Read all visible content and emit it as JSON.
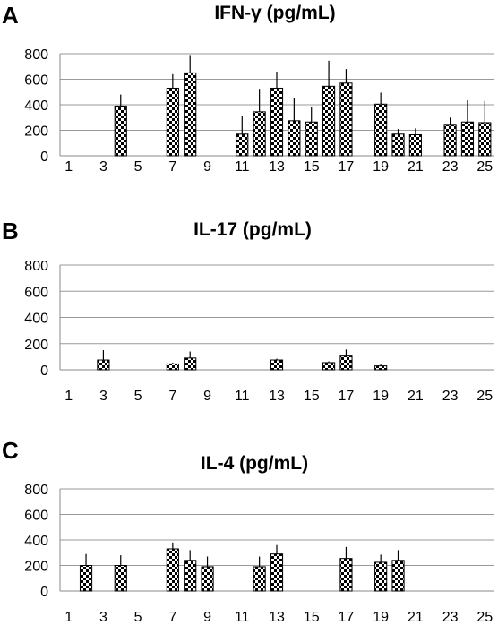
{
  "chart_data": [
    {
      "type": "bar",
      "panel_label": "A",
      "title": "IFN-γ (pg/mL)",
      "x": [
        1,
        2,
        3,
        4,
        5,
        6,
        7,
        8,
        9,
        10,
        11,
        12,
        13,
        14,
        15,
        16,
        17,
        18,
        19,
        20,
        21,
        22,
        23,
        24,
        25
      ],
      "x_tick_labels": [
        "1",
        "3",
        "5",
        "7",
        "9",
        "11",
        "13",
        "15",
        "17",
        "19",
        "21",
        "23",
        "25"
      ],
      "values": [
        null,
        null,
        null,
        390,
        null,
        null,
        530,
        650,
        null,
        null,
        170,
        345,
        530,
        275,
        265,
        545,
        570,
        null,
        405,
        170,
        165,
        null,
        240,
        265,
        260
      ],
      "error_plus": [
        null,
        null,
        null,
        90,
        null,
        null,
        110,
        140,
        null,
        null,
        140,
        180,
        130,
        180,
        120,
        200,
        110,
        null,
        90,
        40,
        50,
        null,
        60,
        170,
        170
      ],
      "ylim": [
        0,
        800
      ],
      "y_ticks": [
        0,
        200,
        400,
        600,
        800
      ],
      "fill": "checkerboard",
      "grid": true
    },
    {
      "type": "bar",
      "panel_label": "B",
      "title": "IL-17 (pg/mL)",
      "x": [
        1,
        2,
        3,
        4,
        5,
        6,
        7,
        8,
        9,
        10,
        11,
        12,
        13,
        14,
        15,
        16,
        17,
        18,
        19,
        20,
        21,
        22,
        23,
        24,
        25
      ],
      "x_tick_labels": [
        "1",
        "3",
        "5",
        "7",
        "9",
        "11",
        "13",
        "15",
        "17",
        "19",
        "21",
        "23",
        "25"
      ],
      "values": [
        null,
        null,
        75,
        null,
        null,
        null,
        45,
        90,
        null,
        null,
        null,
        null,
        75,
        null,
        null,
        55,
        105,
        null,
        30,
        null,
        null,
        null,
        null,
        null,
        null
      ],
      "error_plus": [
        null,
        null,
        75,
        null,
        null,
        null,
        10,
        50,
        null,
        null,
        null,
        null,
        10,
        null,
        null,
        10,
        50,
        null,
        10,
        null,
        null,
        null,
        null,
        null,
        null
      ],
      "ylim": [
        0,
        800
      ],
      "y_ticks": [
        0,
        200,
        400,
        600,
        800
      ],
      "fill": "checkerboard",
      "grid": true
    },
    {
      "type": "bar",
      "panel_label": "C",
      "title": "IL-4 (pg/mL)",
      "x": [
        1,
        2,
        3,
        4,
        5,
        6,
        7,
        8,
        9,
        10,
        11,
        12,
        13,
        14,
        15,
        16,
        17,
        18,
        19,
        20,
        21,
        22,
        23,
        24,
        25
      ],
      "x_tick_labels": [
        "1",
        "3",
        "5",
        "7",
        "9",
        "11",
        "13",
        "15",
        "17",
        "19",
        "21",
        "23",
        "25"
      ],
      "values": [
        null,
        200,
        null,
        200,
        null,
        null,
        330,
        240,
        190,
        null,
        null,
        190,
        290,
        null,
        null,
        null,
        255,
        null,
        225,
        240,
        null,
        null,
        null,
        null,
        null
      ],
      "error_plus": [
        null,
        90,
        null,
        80,
        null,
        null,
        50,
        80,
        80,
        null,
        null,
        80,
        70,
        null,
        null,
        null,
        90,
        null,
        60,
        80,
        null,
        null,
        null,
        null,
        null
      ],
      "ylim": [
        0,
        800
      ],
      "y_ticks": [
        0,
        200,
        400,
        600,
        800
      ],
      "fill": "checkerboard",
      "grid": true
    }
  ]
}
